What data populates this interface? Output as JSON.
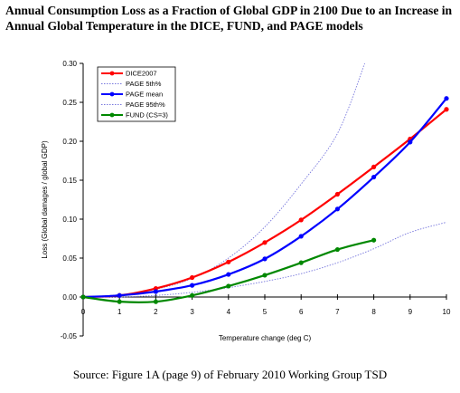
{
  "title": "Annual Consumption Loss as a Fraction of Global GDP in 2100 Due to an Increase in Annual Global Temperature in the DICE, FUND, and PAGE models",
  "caption": "Source: Figure 1A (page 9) of February 2010 Working Group TSD",
  "chart_data": {
    "type": "line",
    "xlabel": "Temperature change (deg C)",
    "ylabel": "Loss (Global damages / global GDP)",
    "xlim": [
      0,
      10
    ],
    "ylim": [
      -0.05,
      0.3
    ],
    "x_ticks": [
      0,
      1,
      2,
      3,
      4,
      5,
      6,
      7,
      8,
      9,
      10
    ],
    "y_ticks": [
      -0.05,
      0.0,
      0.05,
      0.1,
      0.15,
      0.2,
      0.25,
      0.3
    ],
    "y_tick_labels": [
      "-0.05",
      "0.00",
      "0.05",
      "0.10",
      "0.15",
      "0.20",
      "0.25",
      "0.30"
    ],
    "grid": false,
    "legend_position": "top-left",
    "series": [
      {
        "name": "DICE2007",
        "color": "#ff0000",
        "style": "solid-markers",
        "x": [
          0,
          1,
          2,
          3,
          4,
          5,
          6,
          7,
          8,
          9,
          10
        ],
        "y": [
          0.0,
          0.002,
          0.011,
          0.025,
          0.045,
          0.07,
          0.099,
          0.132,
          0.167,
          0.203,
          0.241
        ]
      },
      {
        "name": "PAGE 5th%",
        "color": "#7777dd",
        "style": "dotted",
        "x": [
          0,
          1,
          2,
          3,
          4,
          5,
          6,
          7,
          8,
          9,
          10
        ],
        "y": [
          0.0,
          0.0,
          0.002,
          0.006,
          0.012,
          0.02,
          0.03,
          0.044,
          0.062,
          0.083,
          0.096
        ]
      },
      {
        "name": "PAGE mean",
        "color": "#0000ff",
        "style": "solid-markers",
        "x": [
          0,
          1,
          2,
          3,
          4,
          5,
          6,
          7,
          8,
          9,
          10
        ],
        "y": [
          0.0,
          0.002,
          0.007,
          0.015,
          0.029,
          0.049,
          0.078,
          0.113,
          0.154,
          0.199,
          0.255
        ]
      },
      {
        "name": "PAGE 95th%",
        "color": "#7777dd",
        "style": "dotted",
        "x": [
          0,
          1,
          2,
          3,
          4,
          5,
          6,
          7,
          7.75
        ],
        "y": [
          0.0,
          0.003,
          0.01,
          0.024,
          0.05,
          0.09,
          0.145,
          0.21,
          0.3
        ]
      },
      {
        "name": "FUND (CS=3)",
        "color": "#008800",
        "style": "solid-markers",
        "x": [
          0,
          1,
          2,
          3,
          4,
          5,
          6,
          7,
          8
        ],
        "y": [
          0.0,
          -0.006,
          -0.006,
          0.002,
          0.014,
          0.028,
          0.044,
          0.061,
          0.073
        ]
      }
    ]
  }
}
